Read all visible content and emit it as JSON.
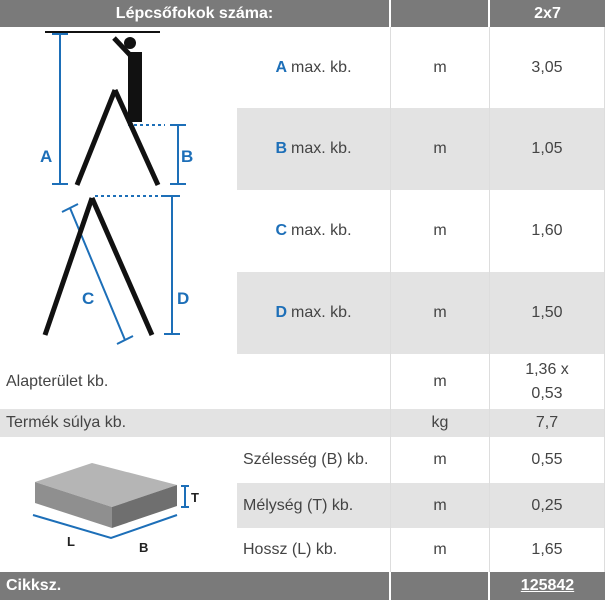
{
  "header": {
    "title": "Lépcsőfokok száma:",
    "value": "2x7"
  },
  "rows": [
    {
      "letter": "A",
      "label": "max. kb.",
      "unit": "m",
      "value": "3,05"
    },
    {
      "letter": "B",
      "label": "max. kb.",
      "unit": "m",
      "value": "1,05"
    },
    {
      "letter": "C",
      "label": "max. kb.",
      "unit": "m",
      "value": "1,60"
    },
    {
      "letter": "D",
      "label": "max. kb.",
      "unit": "m",
      "value": "1,50"
    }
  ],
  "footprint": {
    "label": "Alapterület kb.",
    "unit": "m",
    "value_line1": "1,36 x",
    "value_line2": "0,53"
  },
  "weight": {
    "label": "Termék súlya kb.",
    "unit": "kg",
    "value": "7,7"
  },
  "package": [
    {
      "label": "Szélesség (B) kb.",
      "unit": "m",
      "value": "0,55"
    },
    {
      "label": "Mélység (T) kb.",
      "unit": "m",
      "value": "0,25"
    },
    {
      "label": "Hossz (L) kb.",
      "unit": "m",
      "value": "1,65"
    }
  ],
  "diagram": {
    "labels": [
      "A",
      "B",
      "C",
      "D"
    ],
    "box_labels": [
      "T",
      "L",
      "B"
    ],
    "accent": "#1d6fb8"
  },
  "footer": {
    "label": "Cikksz.",
    "value": "125842"
  }
}
